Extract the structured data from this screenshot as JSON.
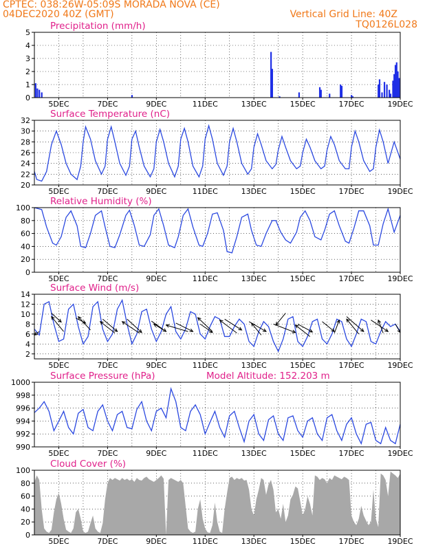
{
  "header": {
    "line1_left": "CPTEC:   038:26W-05:09S   MORADA NOVA (CE)",
    "line2_left": "04DEC2020 40Z (GMT)",
    "line1_right": "Vertical Grid Line: 40Z",
    "line2_right": "TQ0126L028"
  },
  "extra_label": "Model Altitude: 152.203 m",
  "colors": {
    "header": "#f07818",
    "title": "#e0208a",
    "line": "#2a48e0",
    "bar": "#1f2fe6",
    "cloud": "#a8a8a8"
  },
  "x_axis": {
    "range": [
      "04DEC",
      "19DEC"
    ],
    "tick_labels": [
      "5DEC",
      "7DEC",
      "9DEC",
      "11DEC",
      "13DEC",
      "15DEC",
      "17DEC",
      "19DEC"
    ],
    "tick_days": [
      5,
      7,
      9,
      11,
      13,
      15,
      17,
      19
    ],
    "vertical_grid_days": [
      5,
      6,
      7,
      8,
      9,
      10,
      11,
      12,
      13,
      14,
      15,
      16,
      17,
      18,
      19
    ]
  },
  "chart_data": [
    {
      "id": "precip",
      "type": "bar",
      "title": "Precipitation (mm/h)",
      "ylim": [
        0,
        5
      ],
      "yticks": [
        0,
        1,
        2,
        3,
        4,
        5
      ],
      "grid": true,
      "x": [
        4.05,
        4.12,
        4.2,
        4.3,
        8.0,
        13.7,
        13.75,
        14.05,
        14.85,
        15.7,
        15.75,
        16.1,
        16.55,
        16.6,
        17.0,
        17.05,
        18.1,
        18.15,
        18.25,
        18.35,
        18.45,
        18.55,
        18.6,
        18.7,
        18.75,
        18.8,
        18.85,
        18.9,
        18.95
      ],
      "values": [
        1.1,
        0.7,
        0.6,
        0.4,
        0.2,
        3.5,
        2.2,
        0.1,
        0.4,
        0.8,
        0.6,
        0.3,
        1.0,
        0.9,
        0.2,
        0.1,
        1.0,
        1.4,
        0.4,
        1.2,
        1.0,
        0.6,
        0.3,
        1.3,
        1.8,
        2.5,
        2.7,
        2.0,
        1.5
      ]
    },
    {
      "id": "temp",
      "type": "line",
      "title": "Surface Temperature (nC)",
      "ylim": [
        20,
        32
      ],
      "yticks": [
        20,
        22,
        24,
        26,
        28,
        30,
        32
      ],
      "grid": true,
      "x": [
        4.0,
        4.1,
        4.3,
        4.5,
        4.7,
        4.9,
        5.1,
        5.3,
        5.5,
        5.75,
        5.9,
        6.0,
        6.1,
        6.3,
        6.5,
        6.75,
        6.9,
        7.0,
        7.15,
        7.3,
        7.5,
        7.75,
        7.9,
        8.0,
        8.15,
        8.3,
        8.5,
        8.75,
        8.9,
        9.0,
        9.15,
        9.3,
        9.5,
        9.75,
        9.9,
        10.0,
        10.15,
        10.3,
        10.5,
        10.75,
        10.9,
        11.0,
        11.15,
        11.3,
        11.5,
        11.75,
        11.9,
        12.0,
        12.15,
        12.3,
        12.5,
        12.75,
        12.9,
        13.0,
        13.15,
        13.3,
        13.5,
        13.75,
        13.9,
        14.0,
        14.15,
        14.3,
        14.5,
        14.75,
        14.9,
        15.0,
        15.15,
        15.3,
        15.5,
        15.75,
        15.9,
        16.0,
        16.15,
        16.3,
        16.5,
        16.75,
        16.9,
        17.0,
        17.15,
        17.3,
        17.5,
        17.75,
        17.9,
        18.0,
        18.15,
        18.3,
        18.5,
        18.75,
        19.0
      ],
      "values": [
        22.5,
        21.0,
        20.7,
        22.5,
        27.5,
        30.0,
        27.5,
        24.0,
        22.0,
        21.0,
        23.5,
        28.0,
        30.8,
        28.5,
        24.5,
        22.0,
        23.5,
        28.5,
        30.8,
        28.0,
        24.0,
        21.8,
        23.5,
        28.5,
        30.0,
        27.0,
        23.5,
        21.5,
        23.0,
        28.0,
        30.3,
        28.0,
        24.0,
        21.5,
        23.5,
        28.5,
        30.5,
        28.0,
        23.5,
        21.5,
        23.5,
        28.5,
        31.0,
        28.5,
        24.0,
        21.8,
        23.5,
        28.0,
        30.5,
        28.0,
        24.0,
        22.0,
        23.0,
        27.0,
        29.5,
        27.5,
        24.5,
        23.0,
        23.8,
        26.5,
        29.0,
        27.0,
        24.5,
        23.0,
        23.5,
        26.0,
        28.5,
        27.0,
        24.5,
        23.0,
        23.5,
        26.5,
        29.0,
        27.5,
        24.5,
        23.0,
        23.0,
        27.0,
        30.0,
        28.0,
        24.5,
        22.5,
        23.0,
        27.0,
        30.2,
        28.0,
        24.0,
        28.0,
        24.8
      ]
    },
    {
      "id": "rh",
      "type": "line",
      "title": "Relative Humidity (%)",
      "ylim": [
        0,
        100
      ],
      "yticks": [
        0,
        20,
        40,
        60,
        80,
        100
      ],
      "grid": true,
      "x": [
        4.0,
        4.3,
        4.5,
        4.75,
        4.9,
        5.1,
        5.3,
        5.5,
        5.75,
        5.9,
        6.1,
        6.3,
        6.5,
        6.75,
        6.9,
        7.1,
        7.3,
        7.5,
        7.75,
        7.9,
        8.1,
        8.3,
        8.5,
        8.75,
        8.9,
        9.1,
        9.3,
        9.5,
        9.75,
        9.9,
        10.1,
        10.3,
        10.5,
        10.75,
        10.9,
        11.1,
        11.3,
        11.5,
        11.75,
        11.9,
        12.1,
        12.3,
        12.5,
        12.75,
        12.9,
        13.1,
        13.3,
        13.5,
        13.75,
        13.9,
        14.1,
        14.3,
        14.5,
        14.75,
        14.9,
        15.1,
        15.3,
        15.5,
        15.75,
        15.9,
        16.1,
        16.3,
        16.5,
        16.75,
        16.9,
        17.1,
        17.3,
        17.5,
        17.75,
        17.9,
        18.1,
        18.3,
        18.5,
        18.75,
        19.0
      ],
      "values": [
        100,
        97,
        70,
        45,
        42,
        55,
        85,
        95,
        72,
        40,
        38,
        60,
        88,
        95,
        70,
        40,
        38,
        58,
        88,
        96,
        72,
        42,
        40,
        58,
        88,
        98,
        72,
        42,
        38,
        55,
        88,
        98,
        70,
        42,
        40,
        60,
        90,
        92,
        65,
        32,
        30,
        55,
        85,
        90,
        65,
        42,
        40,
        60,
        80,
        80,
        62,
        50,
        45,
        62,
        85,
        95,
        80,
        55,
        50,
        65,
        90,
        95,
        72,
        48,
        45,
        68,
        95,
        95,
        72,
        42,
        42,
        75,
        98,
        62,
        88
      ]
    },
    {
      "id": "wind",
      "type": "line",
      "title": "Surface Wind (m/s)",
      "ylim": [
        1,
        14
      ],
      "yticks": [
        2,
        4,
        6,
        8,
        10,
        12,
        14
      ],
      "grid": true,
      "x": [
        4.0,
        4.2,
        4.4,
        4.6,
        4.8,
        5.0,
        5.2,
        5.4,
        5.6,
        5.8,
        6.0,
        6.2,
        6.4,
        6.6,
        6.8,
        7.0,
        7.2,
        7.4,
        7.6,
        7.8,
        8.0,
        8.2,
        8.4,
        8.6,
        8.8,
        9.0,
        9.2,
        9.4,
        9.6,
        9.8,
        10.0,
        10.2,
        10.4,
        10.6,
        10.8,
        11.0,
        11.2,
        11.4,
        11.6,
        11.8,
        12.0,
        12.2,
        12.4,
        12.6,
        12.8,
        13.0,
        13.2,
        13.4,
        13.6,
        13.8,
        14.0,
        14.2,
        14.4,
        14.6,
        14.8,
        15.0,
        15.2,
        15.4,
        15.6,
        15.8,
        16.0,
        16.2,
        16.4,
        16.6,
        16.8,
        17.0,
        17.2,
        17.4,
        17.6,
        17.8,
        18.0,
        18.2,
        18.4,
        18.6,
        18.8,
        19.0
      ],
      "values": [
        7.0,
        5.8,
        12.0,
        12.5,
        8.0,
        4.5,
        5.0,
        11.0,
        12.0,
        7.5,
        4.0,
        5.5,
        11.5,
        12.5,
        7.0,
        4.5,
        6.0,
        11.0,
        12.8,
        8.0,
        4.0,
        6.0,
        10.5,
        11.0,
        7.0,
        4.5,
        6.5,
        10.0,
        11.5,
        6.5,
        5.0,
        7.0,
        10.5,
        10.0,
        6.0,
        5.0,
        7.5,
        9.5,
        9.0,
        5.5,
        5.5,
        7.5,
        9.0,
        8.0,
        4.5,
        3.5,
        6.5,
        8.5,
        7.5,
        4.5,
        2.5,
        5.0,
        9.0,
        9.5,
        4.5,
        3.5,
        5.5,
        8.5,
        9.0,
        5.0,
        4.0,
        6.0,
        9.0,
        8.5,
        5.0,
        3.5,
        6.0,
        9.0,
        8.5,
        4.5,
        4.0,
        6.5,
        8.5,
        7.5,
        8.0,
        6.5
      ],
      "vectors": {
        "base_days": [
          4.2,
          4.7,
          5.2,
          5.7,
          6.3,
          6.8,
          7.3,
          7.8,
          8.3,
          8.8,
          9.3,
          9.8,
          10.3,
          10.8,
          11.3,
          11.8,
          12.3,
          12.8,
          13.3,
          13.8,
          14.3,
          14.8,
          15.3,
          15.8,
          16.3,
          16.8,
          17.3,
          17.8,
          18.3,
          18.8
        ],
        "base_speed": [
          6.5,
          10.2,
          6.5,
          9.2,
          6.8,
          9.0,
          6.2,
          9.0,
          6.2,
          8.6,
          6.8,
          8.2,
          6.5,
          8.0,
          6.5,
          9.0,
          6.2,
          8.5,
          5.8,
          8.0,
          10.2,
          8.0,
          5.5,
          8.5,
          6.2,
          9.5,
          6.0,
          8.8,
          6.2,
          8.0
        ],
        "tip_days": [
          4.0,
          5.1,
          4.7,
          6.1,
          5.8,
          7.4,
          6.7,
          8.4,
          7.6,
          9.4,
          8.9,
          10.5,
          9.4,
          11.3,
          10.7,
          12.5,
          11.6,
          13.5,
          12.9,
          14.7,
          13.9,
          15.4,
          14.7,
          16.3,
          16.5,
          17.5,
          16.8,
          18.5,
          18.1,
          19.0
        ],
        "tip_speed": [
          5.8,
          8.4,
          9.5,
          8.2,
          9.5,
          6.5,
          8.5,
          6.3,
          8.5,
          6.5,
          8.0,
          6.5,
          7.8,
          6.3,
          9.3,
          6.8,
          8.8,
          6.5,
          8.2,
          6.3,
          7.8,
          6.4,
          7.8,
          6.5,
          8.8,
          6.5,
          9.0,
          6.5,
          8.8,
          6.3
        ]
      }
    },
    {
      "id": "pressure",
      "type": "line",
      "title": "Surface Pressure (hPa)",
      "ylim": [
        990,
        1000
      ],
      "yticks": [
        990,
        992,
        994,
        996,
        998,
        1000
      ],
      "grid": true,
      "x": [
        4.0,
        4.2,
        4.4,
        4.6,
        4.8,
        5.0,
        5.2,
        5.4,
        5.6,
        5.8,
        6.0,
        6.2,
        6.4,
        6.6,
        6.8,
        7.0,
        7.2,
        7.4,
        7.6,
        7.8,
        8.0,
        8.2,
        8.4,
        8.6,
        8.8,
        9.0,
        9.2,
        9.4,
        9.6,
        9.8,
        10.0,
        10.2,
        10.4,
        10.6,
        10.8,
        11.0,
        11.2,
        11.4,
        11.6,
        11.8,
        12.0,
        12.2,
        12.4,
        12.6,
        12.8,
        13.0,
        13.2,
        13.4,
        13.6,
        13.8,
        14.0,
        14.2,
        14.4,
        14.6,
        14.8,
        15.0,
        15.2,
        15.4,
        15.6,
        15.8,
        16.0,
        16.2,
        16.4,
        16.6,
        16.8,
        17.0,
        17.2,
        17.4,
        17.6,
        17.8,
        18.0,
        18.2,
        18.4,
        18.6,
        18.8,
        19.0
      ],
      "values": [
        995.3,
        996.0,
        997.0,
        995.5,
        992.5,
        994.0,
        995.5,
        993.0,
        992.0,
        995.2,
        995.8,
        993.0,
        992.5,
        995.5,
        996.5,
        994.0,
        992.5,
        995.0,
        995.5,
        993.0,
        992.8,
        995.8,
        997.0,
        994.0,
        992.5,
        995.5,
        996.0,
        994.5,
        999.0,
        997.0,
        993.0,
        992.5,
        995.5,
        996.5,
        995.0,
        992.0,
        993.8,
        995.5,
        993.0,
        991.5,
        994.8,
        995.5,
        993.0,
        990.8,
        994.0,
        995.0,
        992.0,
        991.0,
        994.2,
        994.8,
        992.0,
        991.0,
        994.5,
        994.8,
        992.5,
        991.5,
        994.0,
        994.5,
        992.0,
        991.0,
        994.5,
        995.0,
        992.5,
        991.0,
        993.5,
        994.5,
        992.0,
        990.5,
        993.5,
        993.8,
        991.0,
        990.5,
        993.0,
        991.0,
        990.5,
        993.5
      ]
    },
    {
      "id": "cloud",
      "type": "area",
      "title": "Cloud Cover (%)",
      "ylim": [
        0,
        100
      ],
      "yticks": [
        0,
        20,
        40,
        60,
        80,
        100
      ],
      "grid": true,
      "x": [
        4.0,
        4.1,
        4.2,
        4.3,
        4.4,
        4.5,
        4.6,
        4.7,
        4.8,
        4.9,
        5.0,
        5.1,
        5.2,
        5.3,
        5.4,
        5.5,
        5.6,
        5.7,
        5.8,
        5.9,
        6.0,
        6.1,
        6.2,
        6.3,
        6.4,
        6.5,
        6.6,
        6.7,
        6.8,
        6.9,
        7.0,
        7.1,
        7.2,
        7.3,
        7.4,
        7.5,
        7.6,
        7.7,
        7.8,
        7.9,
        8.0,
        8.1,
        8.2,
        8.3,
        8.4,
        8.5,
        8.6,
        8.7,
        8.8,
        8.9,
        9.0,
        9.1,
        9.2,
        9.3,
        9.4,
        9.5,
        9.6,
        9.7,
        9.8,
        9.9,
        10.0,
        10.1,
        10.2,
        10.3,
        10.4,
        10.5,
        10.6,
        10.7,
        10.8,
        10.9,
        11.0,
        11.1,
        11.2,
        11.3,
        11.4,
        11.5,
        11.6,
        11.7,
        11.8,
        11.9,
        12.0,
        12.1,
        12.2,
        12.3,
        12.4,
        12.5,
        12.6,
        12.7,
        12.8,
        12.9,
        13.0,
        13.1,
        13.2,
        13.3,
        13.4,
        13.5,
        13.6,
        13.7,
        13.8,
        13.9,
        14.0,
        14.1,
        14.2,
        14.3,
        14.4,
        14.5,
        14.6,
        14.7,
        14.8,
        14.9,
        15.0,
        15.1,
        15.2,
        15.3,
        15.4,
        15.5,
        15.6,
        15.7,
        15.8,
        15.9,
        16.0,
        16.1,
        16.2,
        16.3,
        16.4,
        16.5,
        16.6,
        16.7,
        16.8,
        16.9,
        17.0,
        17.1,
        17.2,
        17.3,
        17.4,
        17.5,
        17.6,
        17.7,
        17.8,
        17.9,
        18.0,
        18.1,
        18.2,
        18.3,
        18.4,
        18.5,
        18.6,
        18.7,
        18.8,
        18.9,
        19.0
      ],
      "values": [
        82,
        92,
        85,
        40,
        10,
        5,
        3,
        8,
        35,
        55,
        65,
        48,
        25,
        8,
        5,
        3,
        10,
        35,
        40,
        25,
        5,
        3,
        5,
        18,
        30,
        10,
        5,
        3,
        18,
        55,
        80,
        88,
        85,
        88,
        86,
        84,
        88,
        85,
        87,
        84,
        86,
        82,
        88,
        85,
        84,
        88,
        90,
        86,
        84,
        82,
        85,
        88,
        92,
        87,
        0,
        85,
        88,
        86,
        84,
        82,
        85,
        80,
        45,
        10,
        5,
        3,
        5,
        40,
        55,
        25,
        10,
        4,
        3,
        15,
        50,
        20,
        5,
        3,
        40,
        65,
        88,
        90,
        85,
        88,
        86,
        88,
        84,
        85,
        70,
        40,
        30,
        55,
        70,
        88,
        85,
        62,
        78,
        85,
        70,
        35,
        40,
        25,
        48,
        20,
        30,
        55,
        62,
        75,
        72,
        52,
        30,
        40,
        60,
        48,
        30,
        92,
        90,
        85,
        88,
        86,
        80,
        88,
        85,
        92,
        90,
        88,
        86,
        90,
        88,
        85,
        30,
        20,
        15,
        25,
        45,
        30,
        22,
        15,
        20,
        70,
        25,
        12,
        95,
        92,
        85,
        60,
        98,
        95,
        92,
        88,
        95
      ]
    }
  ]
}
